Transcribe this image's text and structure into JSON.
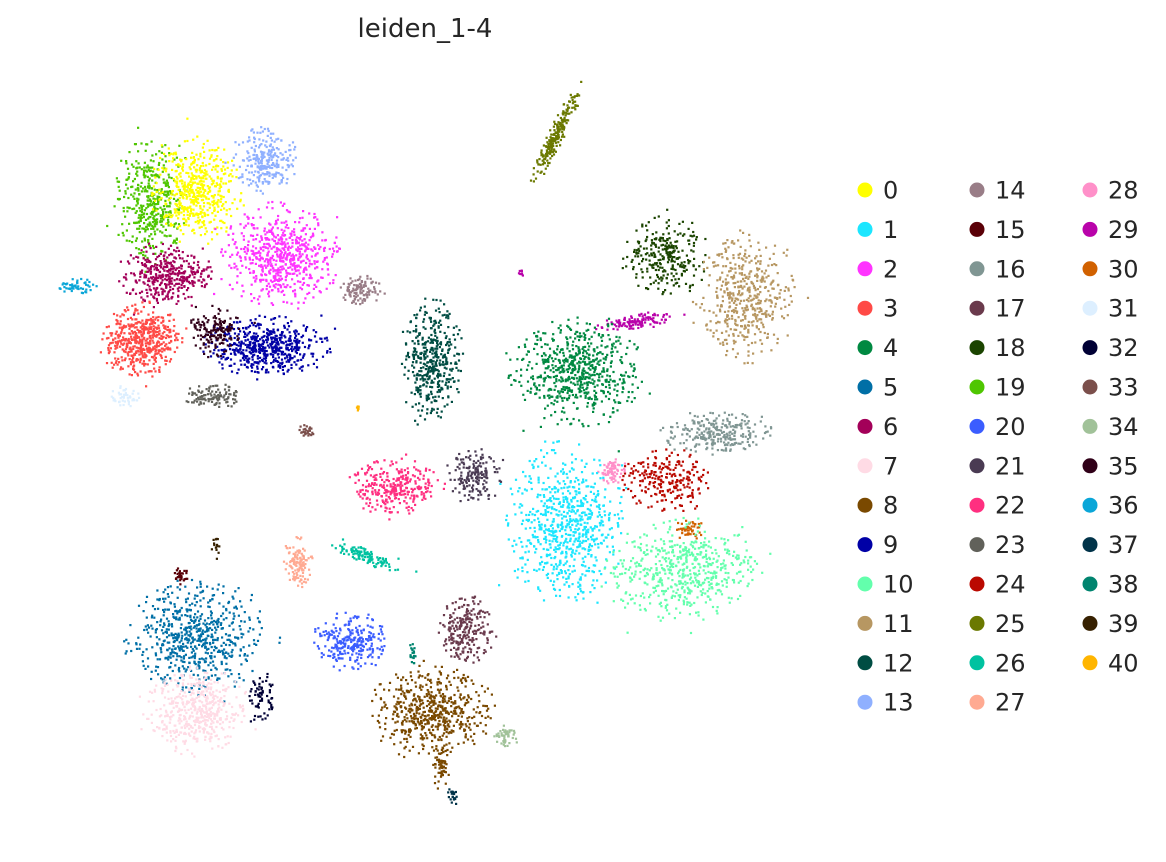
{
  "chart_data": {
    "type": "scatter",
    "title": "leiden_1-4",
    "xlabel": "",
    "ylabel": "",
    "grid": false,
    "axes_visible": false,
    "legend_placement": "right",
    "legend_columns": 3,
    "categories": [
      {
        "name": "0",
        "color": "#FFFF00"
      },
      {
        "name": "1",
        "color": "#1CE6FF"
      },
      {
        "name": "2",
        "color": "#FF34FF"
      },
      {
        "name": "3",
        "color": "#FF4A46"
      },
      {
        "name": "4",
        "color": "#008941"
      },
      {
        "name": "5",
        "color": "#006FA6"
      },
      {
        "name": "6",
        "color": "#A30059"
      },
      {
        "name": "7",
        "color": "#FFDBE5"
      },
      {
        "name": "8",
        "color": "#7A4900"
      },
      {
        "name": "9",
        "color": "#0000A6"
      },
      {
        "name": "10",
        "color": "#63FFAC"
      },
      {
        "name": "11",
        "color": "#B79762"
      },
      {
        "name": "12",
        "color": "#004D43"
      },
      {
        "name": "13",
        "color": "#8FB0FF"
      },
      {
        "name": "14",
        "color": "#997D87"
      },
      {
        "name": "15",
        "color": "#5A0007"
      },
      {
        "name": "16",
        "color": "#809693"
      },
      {
        "name": "17",
        "color": "#6A3A4C"
      },
      {
        "name": "18",
        "color": "#1B4400"
      },
      {
        "name": "19",
        "color": "#4FC601"
      },
      {
        "name": "20",
        "color": "#3B5DFF"
      },
      {
        "name": "21",
        "color": "#4A3B53"
      },
      {
        "name": "22",
        "color": "#FF2F80"
      },
      {
        "name": "23",
        "color": "#61615A"
      },
      {
        "name": "24",
        "color": "#BA0900"
      },
      {
        "name": "25",
        "color": "#6B7900"
      },
      {
        "name": "26",
        "color": "#00C2A0"
      },
      {
        "name": "27",
        "color": "#FFAA92"
      },
      {
        "name": "28",
        "color": "#FF90C9"
      },
      {
        "name": "29",
        "color": "#B903AA"
      },
      {
        "name": "30",
        "color": "#D16100"
      },
      {
        "name": "31",
        "color": "#DDEFFF"
      },
      {
        "name": "32",
        "color": "#000035"
      },
      {
        "name": "33",
        "color": "#7B4F4B"
      },
      {
        "name": "34",
        "color": "#A1C299"
      },
      {
        "name": "35",
        "color": "#300018"
      },
      {
        "name": "36",
        "color": "#0AA6D8"
      },
      {
        "name": "37",
        "color": "#013349"
      },
      {
        "name": "38",
        "color": "#00846F"
      },
      {
        "name": "39",
        "color": "#372101"
      },
      {
        "name": "40",
        "color": "#FFB500"
      }
    ]
  }
}
